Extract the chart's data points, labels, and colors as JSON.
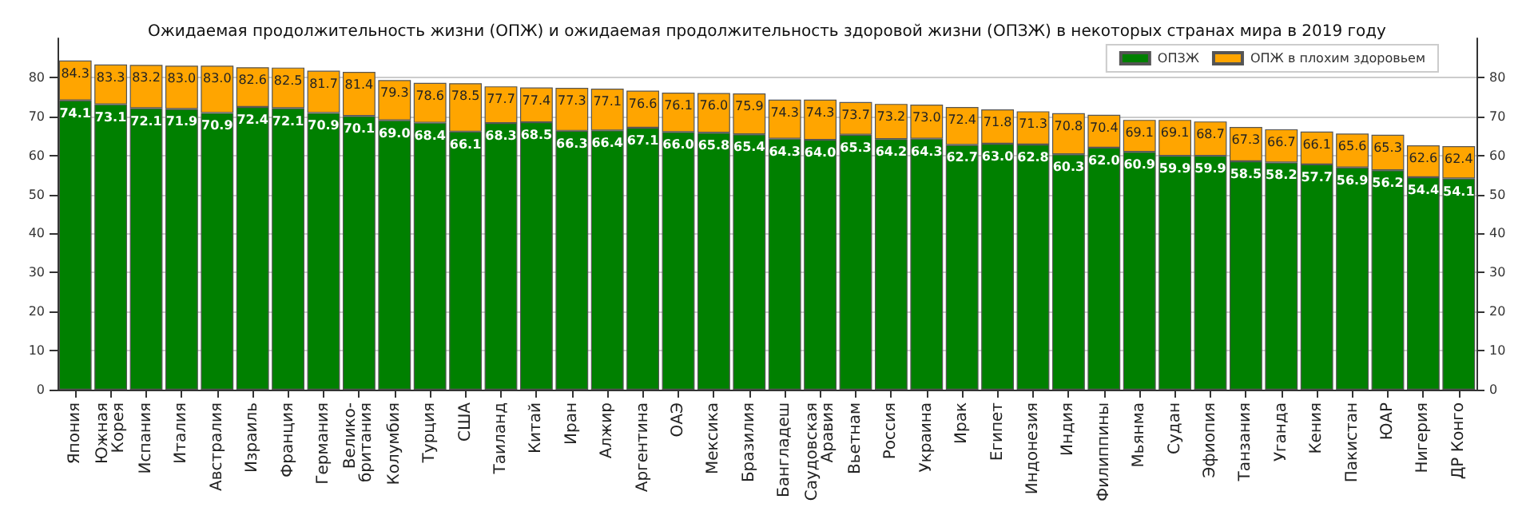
{
  "chart_data": {
    "type": "bar",
    "title": "Ожидаемая продолжительность жизни (ОПЖ) и ожидаемая продолжительность здоровой жизни (ОПЗЖ) в некоторых странах мира в 2019 году",
    "categories": [
      "Япония",
      "Южная\nКорея",
      "Испания",
      "Италия",
      "Австралия",
      "Израиль",
      "Франция",
      "Германия",
      "Велико-\nбритания",
      "Колумбия",
      "Турция",
      "США",
      "Таиланд",
      "Китай",
      "Иран",
      "Алжир",
      "Аргентина",
      "ОАЭ",
      "Мексика",
      "Бразилия",
      "Бангладеш",
      "Саудовская\nАравия",
      "Вьетнам",
      "Россия",
      "Украина",
      "Ирак",
      "Египет",
      "Индонезия",
      "Индия",
      "Филиппины",
      "Мьянма",
      "Судан",
      "Эфиопия",
      "Танзания",
      "Уганда",
      "Кения",
      "Пакистан",
      "ЮАР",
      "Нигерия",
      "ДР Конго"
    ],
    "stacked": true,
    "series": [
      {
        "name": "ОПЗЖ",
        "color": "#008000",
        "values": [
          74.1,
          73.1,
          72.1,
          71.9,
          70.9,
          72.4,
          72.1,
          70.9,
          70.1,
          69.0,
          68.4,
          66.1,
          68.3,
          68.5,
          66.3,
          66.4,
          67.1,
          66.0,
          65.8,
          65.4,
          64.3,
          64.0,
          65.3,
          64.2,
          64.3,
          62.7,
          63.0,
          62.8,
          60.3,
          62.0,
          60.9,
          59.9,
          59.9,
          58.5,
          58.2,
          57.7,
          56.9,
          56.2,
          54.4,
          54.1
        ],
        "value_labels": [
          "74.1",
          "73.1",
          "72.1",
          "71.9",
          "70.9",
          "72.4",
          "72.1",
          "70.9",
          "70.1",
          "69.0",
          "68.4",
          "66.1",
          "68.3",
          "68.5",
          "66.3",
          "66.4",
          "67.1",
          "66.0",
          "65.8",
          "65.4",
          "64.3",
          "64.0",
          "65.3",
          "64.2",
          "64.3",
          "62.7",
          "63.0",
          "62.8",
          "60.3",
          "62.0",
          "60.9",
          "59.9",
          "59.9",
          "58.5",
          "58.2",
          "57.7",
          "56.9",
          "56.2",
          "54.4",
          "54.1"
        ]
      },
      {
        "name": "ОПЖ в плохим здоровьем",
        "color": "#ffa500",
        "values": [
          10.2,
          10.2,
          11.1,
          11.1,
          12.1,
          10.2,
          10.4,
          10.8,
          11.3,
          10.3,
          10.2,
          12.4,
          9.4,
          8.9,
          11.0,
          10.7,
          9.5,
          10.1,
          10.2,
          10.5,
          10.0,
          10.3,
          8.4,
          9.0,
          8.7,
          9.7,
          8.8,
          8.5,
          10.5,
          8.4,
          8.2,
          9.2,
          8.8,
          8.8,
          8.5,
          8.4,
          8.7,
          9.1,
          8.2,
          8.3
        ]
      }
    ],
    "totals": [
      "84.3",
      "83.3",
      "83.2",
      "83.0",
      "83.0",
      "82.6",
      "82.5",
      "81.7",
      "81.4",
      "79.3",
      "78.6",
      "78.5",
      "77.7",
      "77.4",
      "77.3",
      "77.1",
      "76.6",
      "76.1",
      "76.0",
      "75.9",
      "74.3",
      "74.3",
      "73.7",
      "73.2",
      "73.0",
      "72.4",
      "71.8",
      "71.3",
      "70.8",
      "70.4",
      "69.1",
      "69.1",
      "68.7",
      "67.3",
      "66.7",
      "66.1",
      "65.6",
      "65.3",
      "62.6",
      "62.4"
    ],
    "ylim": [
      0,
      90
    ],
    "yticks": [
      0,
      10,
      20,
      30,
      40,
      50,
      60,
      70,
      80
    ],
    "y2lim": [
      0,
      90
    ],
    "y2ticks": [
      0,
      10,
      20,
      30,
      40,
      50,
      60,
      70,
      80
    ],
    "grid": "y",
    "legend": "top right"
  }
}
